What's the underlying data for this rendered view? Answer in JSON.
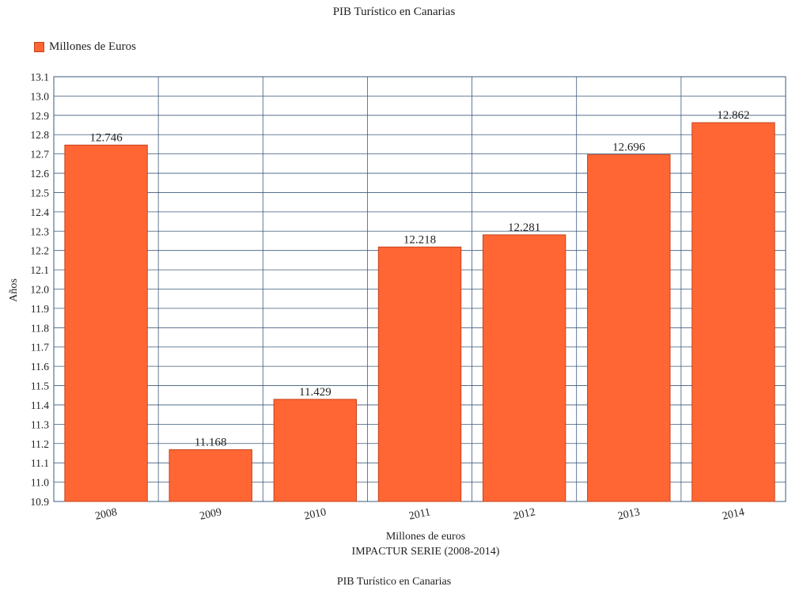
{
  "chart_data": {
    "type": "bar",
    "title": "PIB Turístico en Canarias",
    "categories": [
      "2008",
      "2009",
      "2010",
      "2011",
      "2012",
      "2013",
      "2014"
    ],
    "series": [
      {
        "name": "Millones de Euros",
        "values": [
          12.746,
          11.168,
          11.429,
          12.218,
          12.281,
          12.696,
          12.862
        ]
      }
    ],
    "data_labels": [
      "12.746",
      "11.168",
      "11.429",
      "12.218",
      "12.281",
      "12.696",
      "12.862"
    ],
    "ylabel": "Años",
    "xlabel": "Millones de euros",
    "subtitle": "IMPACTUR SERIE (2008-2014)",
    "footer": "PIB Turístico en Canarias",
    "ylim": [
      10.9,
      13.1
    ],
    "yticks": [
      "10.9",
      "11.0",
      "11.1",
      "11.2",
      "11.3",
      "11.4",
      "11.5",
      "11.6",
      "11.7",
      "11.8",
      "11.9",
      "12.0",
      "12.1",
      "12.2",
      "12.3",
      "12.4",
      "12.5",
      "12.6",
      "12.7",
      "12.8",
      "12.9",
      "13.0",
      "13.1"
    ],
    "grid": true,
    "legend_position": "top-left",
    "bar_color": "#ff6633",
    "bar_border_color": "#c4431f"
  }
}
